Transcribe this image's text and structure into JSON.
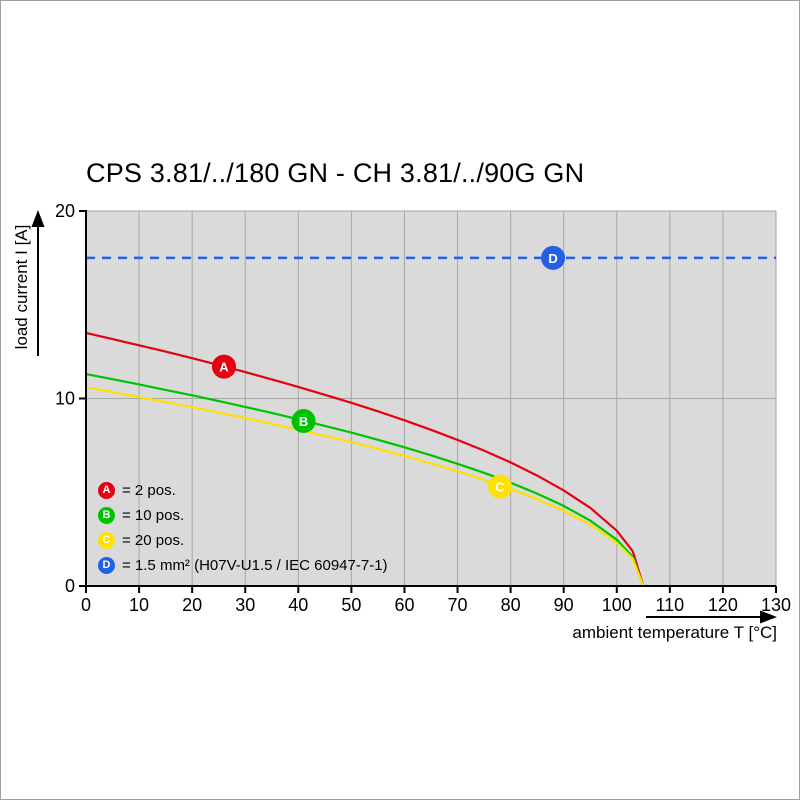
{
  "chart_data": {
    "type": "line",
    "title": "CPS 3.81/../180 GN - CH 3.81/../90G GN",
    "xlabel": "ambient temperature T [°C]",
    "ylabel": "load current I [A]",
    "xlim": [
      0,
      130
    ],
    "ylim": [
      0,
      20
    ],
    "x_ticks": [
      0,
      10,
      20,
      30,
      40,
      50,
      60,
      70,
      80,
      90,
      100,
      110,
      120,
      130
    ],
    "y_ticks": [
      0,
      10,
      20
    ],
    "grid": true,
    "plot_bg": "#dadada",
    "grid_color": "#a6a6a6",
    "series": [
      {
        "name": "A",
        "label": "2 pos.",
        "color": "#e60012",
        "marker_x": 26,
        "marker_y": 11.7,
        "points": [
          [
            0,
            13.5
          ],
          [
            5,
            13.17
          ],
          [
            10,
            12.84
          ],
          [
            15,
            12.5
          ],
          [
            20,
            12.15
          ],
          [
            25,
            11.78
          ],
          [
            30,
            11.41
          ],
          [
            35,
            11.02
          ],
          [
            40,
            10.62
          ],
          [
            45,
            10.2
          ],
          [
            50,
            9.77
          ],
          [
            55,
            9.32
          ],
          [
            60,
            8.84
          ],
          [
            65,
            8.33
          ],
          [
            70,
            7.79
          ],
          [
            75,
            7.22
          ],
          [
            80,
            6.59
          ],
          [
            85,
            5.89
          ],
          [
            90,
            5.1
          ],
          [
            95,
            4.17
          ],
          [
            100,
            2.95
          ],
          [
            103,
            1.86
          ],
          [
            105,
            0
          ]
        ]
      },
      {
        "name": "B",
        "label": "10 pos.",
        "color": "#00c300",
        "marker_x": 41,
        "marker_y": 8.8,
        "points": [
          [
            0,
            11.3
          ],
          [
            5,
            11.03
          ],
          [
            10,
            10.75
          ],
          [
            15,
            10.46
          ],
          [
            20,
            10.17
          ],
          [
            25,
            9.86
          ],
          [
            30,
            9.55
          ],
          [
            35,
            9.23
          ],
          [
            40,
            8.89
          ],
          [
            45,
            8.54
          ],
          [
            50,
            8.18
          ],
          [
            55,
            7.8
          ],
          [
            60,
            7.4
          ],
          [
            65,
            6.97
          ],
          [
            70,
            6.52
          ],
          [
            75,
            6.04
          ],
          [
            80,
            5.51
          ],
          [
            85,
            4.93
          ],
          [
            90,
            4.27
          ],
          [
            95,
            3.49
          ],
          [
            100,
            2.47
          ],
          [
            103,
            1.56
          ],
          [
            105,
            0
          ]
        ]
      },
      {
        "name": "C",
        "label": "20 pos.",
        "color": "#ffe000",
        "marker_x": 78,
        "marker_y": 5.3,
        "points": [
          [
            0,
            10.6
          ],
          [
            5,
            10.34
          ],
          [
            10,
            10.08
          ],
          [
            15,
            9.81
          ],
          [
            20,
            9.54
          ],
          [
            25,
            9.25
          ],
          [
            30,
            8.96
          ],
          [
            35,
            8.65
          ],
          [
            40,
            8.34
          ],
          [
            45,
            8.01
          ],
          [
            50,
            7.67
          ],
          [
            55,
            7.32
          ],
          [
            60,
            6.94
          ],
          [
            65,
            6.54
          ],
          [
            70,
            6.12
          ],
          [
            75,
            5.67
          ],
          [
            80,
            5.17
          ],
          [
            85,
            4.63
          ],
          [
            90,
            4.01
          ],
          [
            95,
            3.27
          ],
          [
            100,
            2.31
          ],
          [
            103,
            1.46
          ],
          [
            105,
            0
          ]
        ]
      },
      {
        "name": "D",
        "label": "1.5 mm² (H07V-U1.5 / IEC 60947-7-1)",
        "color": "#2360e6",
        "style": "dashed-hline",
        "value": 17.5,
        "marker_x": 88,
        "marker_y": 17.5
      }
    ]
  },
  "legend": {
    "items": [
      {
        "key": "A",
        "color": "#e60012",
        "label": "= 2 pos."
      },
      {
        "key": "B",
        "color": "#00c300",
        "label": "= 10 pos."
      },
      {
        "key": "C",
        "color": "#ffe000",
        "label": "= 20 pos."
      },
      {
        "key": "D",
        "color": "#2360e6",
        "label": "= 1.5 mm² (H07V-U1.5 / IEC 60947-7-1)"
      }
    ]
  }
}
